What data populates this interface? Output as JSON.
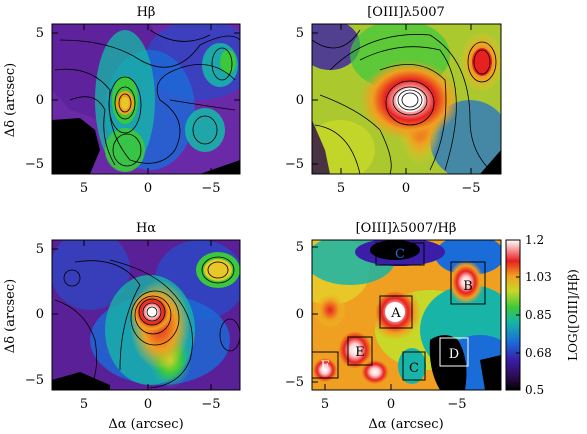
{
  "panels": {
    "hbeta": {
      "title": "Hβ"
    },
    "oiii": {
      "title": "[OIII]λ5007"
    },
    "halpha": {
      "title": "Hα"
    },
    "ratio": {
      "title": "[OIII]λ5007/Hβ"
    }
  },
  "axes": {
    "xlabel": "Δα (arcsec)",
    "ylabel": "Δδ (arcsec)",
    "xticks": [
      "5",
      "0",
      "−5"
    ],
    "yticks": [
      "5",
      "0",
      "−5"
    ]
  },
  "colorbar": {
    "label": "LOG([OIII]/Hβ)",
    "ticks": [
      "1.2",
      "1.03",
      "0.85",
      "0.68",
      "0.5"
    ],
    "range": [
      0.5,
      1.2
    ]
  },
  "regions": [
    "A",
    "B",
    "C",
    "C",
    "D",
    "E",
    "F"
  ]
}
